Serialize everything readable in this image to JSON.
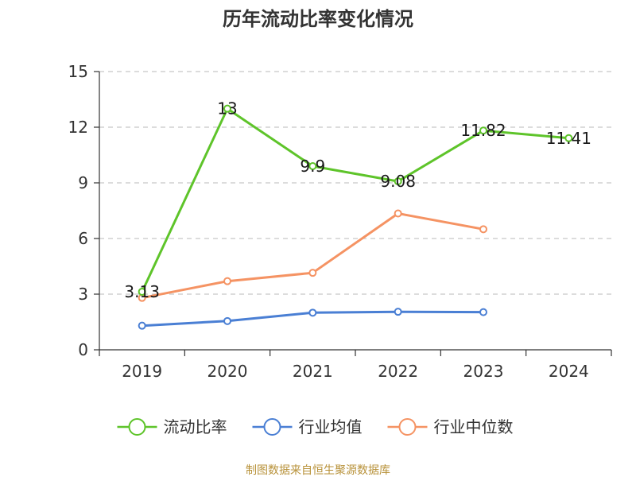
{
  "chart_data": {
    "type": "line",
    "title": "历年流动比率变化情况",
    "categories": [
      "2019",
      "2020",
      "2021",
      "2022",
      "2023",
      "2024"
    ],
    "ylim": [
      0,
      15
    ],
    "yticks": [
      0,
      3,
      6,
      9,
      12,
      15
    ],
    "ytick_labels": [
      "0",
      "3",
      "6",
      "9",
      "12",
      "15"
    ],
    "grid": true,
    "legend_position": "bottom",
    "series": [
      {
        "name": "流动比率",
        "color": "#5ec42a",
        "values": [
          3.13,
          13,
          9.9,
          9.08,
          11.82,
          11.41
        ],
        "labels": [
          "3.13",
          "13",
          "9.9",
          "9.08",
          "11.82",
          "11.41"
        ]
      },
      {
        "name": "行业均值",
        "color": "#4a7fd4",
        "values": [
          1.3,
          1.55,
          2.0,
          2.05,
          2.03,
          null
        ]
      },
      {
        "name": "行业中位数",
        "color": "#f59363",
        "values": [
          2.8,
          3.7,
          4.15,
          7.35,
          6.5,
          null
        ]
      }
    ],
    "source": "制图数据来自恒生聚源数据库"
  }
}
